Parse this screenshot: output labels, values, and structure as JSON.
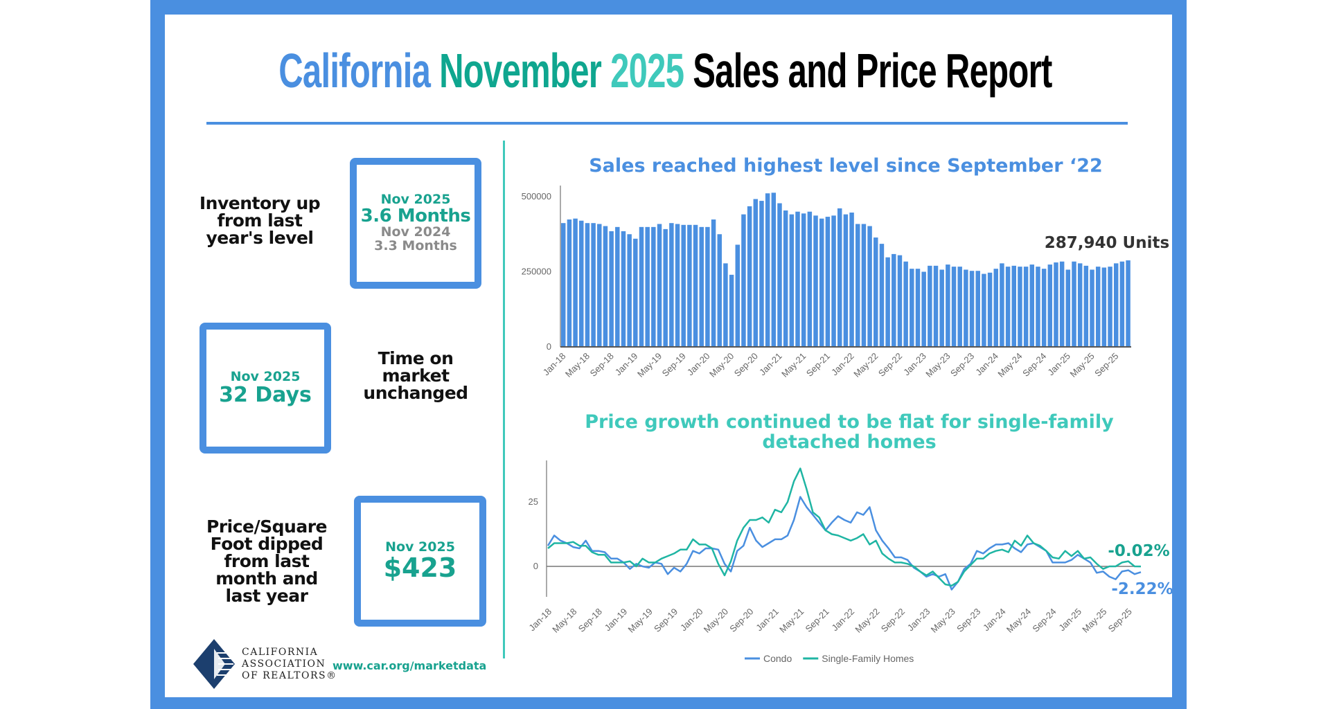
{
  "title": {
    "part1": "California",
    "part2": "November",
    "part3": "2025",
    "part4": "Sales and Price Report"
  },
  "colors": {
    "blue": "#4a8fe0",
    "teal": "#18a28f",
    "light_teal": "#3fc9bb",
    "condo": "#4a8fe0",
    "sfh": "#1fb5a3"
  },
  "inventory": {
    "description": "Inventory up from last year's level",
    "current_label": "Nov 2025",
    "current_value": "3.6 Months",
    "prior_label": "Nov 2024",
    "prior_value": "3.3 Months"
  },
  "time_on_market": {
    "description": "Time on market unchanged",
    "current_label": "Nov 2025",
    "current_value": "32 Days"
  },
  "price_sqft": {
    "description": "Price/Square Foot dipped from last month and last year",
    "current_label": "Nov 2025",
    "current_value": "$423"
  },
  "footer": {
    "logo_text": [
      "CALIFORNIA",
      "ASSOCIATION",
      "OF REALTORS®"
    ],
    "url": "www.car.org/marketdata"
  },
  "chart_data": [
    {
      "type": "bar",
      "title": "Sales reached highest level since September ‘22",
      "annotation": "287,940 Units",
      "x_start": "Jan-18",
      "x_end": "Nov-25",
      "tick_labels": [
        "Jan-18",
        "May-18",
        "Sep-18",
        "Jan-19",
        "May-19",
        "Sep-19",
        "Jan-20",
        "May-20",
        "Sep-20",
        "Jan-21",
        "May-21",
        "Sep-21",
        "Jan-22",
        "May-22",
        "Sep-22",
        "Jan-23",
        "May-23",
        "Sep-23",
        "Jan-24",
        "May-24",
        "Sep-24",
        "Jan-25",
        "May-25",
        "Sep-25"
      ],
      "y_ticks": [
        "0",
        "250000",
        "500000"
      ],
      "ylim": [
        0,
        520000
      ],
      "values": [
        412000,
        424000,
        427000,
        420000,
        412000,
        412000,
        409000,
        402000,
        385000,
        399000,
        385000,
        375000,
        360000,
        399000,
        399000,
        399000,
        409000,
        392000,
        412000,
        409000,
        406000,
        406000,
        406000,
        399000,
        399000,
        424000,
        375000,
        278000,
        240000,
        340000,
        441000,
        468000,
        492000,
        486000,
        511000,
        513000,
        478000,
        454000,
        441000,
        450000,
        444000,
        450000,
        437000,
        427000,
        433000,
        437000,
        461000,
        441000,
        447000,
        409000,
        409000,
        402000,
        364000,
        343000,
        298000,
        309000,
        305000,
        284000,
        260000,
        260000,
        250000,
        270000,
        270000,
        257000,
        274000,
        267000,
        267000,
        257000,
        253000,
        253000,
        243000,
        247000,
        260000,
        278000,
        267000,
        270000,
        267000,
        267000,
        274000,
        267000,
        260000,
        274000,
        281000,
        284000,
        257000,
        284000,
        278000,
        270000,
        257000,
        267000,
        264000,
        267000,
        278000,
        284000,
        287940
      ],
      "grid": false
    },
    {
      "type": "line",
      "title": "Price growth continued to be flat for single-family detached homes",
      "x_start": "Jan-18",
      "x_end": "Nov-25",
      "tick_labels": [
        "Jan-18",
        "May-18",
        "Sep-18",
        "Jan-19",
        "May-19",
        "Sep-19",
        "Jan-20",
        "May-20",
        "Sep-20",
        "Jan-21",
        "May-21",
        "Sep-21",
        "Jan-22",
        "May-22",
        "Sep-22",
        "Jan-23",
        "May-23",
        "Sep-23",
        "Jan-24",
        "May-24",
        "Sep-24",
        "Jan-25",
        "May-25",
        "Sep-25"
      ],
      "y_ticks": [
        "0",
        "25"
      ],
      "ylim": [
        -12,
        42
      ],
      "legend_position": "bottom",
      "grid": false,
      "series": [
        {
          "name": "Condo",
          "color": "#4a8fe0",
          "end_label": "-2.22%",
          "values": [
            8,
            12,
            10,
            9,
            7.5,
            7,
            10,
            6,
            6,
            5.5,
            3,
            3,
            1.5,
            -1,
            1,
            0,
            -0.5,
            1.5,
            1,
            -3,
            -0.5,
            -2,
            1,
            6,
            5,
            7,
            7,
            6.5,
            1,
            -2,
            6,
            8,
            15,
            10,
            7.5,
            9,
            10.5,
            10.5,
            12,
            18,
            27,
            23,
            20,
            17,
            14,
            17,
            19.5,
            18,
            17,
            21,
            20,
            23,
            14,
            10,
            7,
            3.5,
            3.5,
            2.5,
            -0.5,
            -2,
            -4,
            -3,
            -4,
            -3,
            -9,
            -6,
            -1,
            1,
            6,
            5,
            7,
            8.5,
            8.5,
            9,
            7,
            5.5,
            8.5,
            9,
            7.5,
            6,
            1.5,
            1.5,
            1.5,
            2.5,
            4.5,
            3,
            1.5,
            -2.5,
            -2,
            -4,
            -5,
            -2,
            -1.5,
            -3,
            -2.22
          ]
        },
        {
          "name": "Single-Family Homes",
          "color": "#1fb5a3",
          "end_label": "-0.02%",
          "values": [
            7,
            9,
            9,
            9,
            9.5,
            8,
            8,
            5.5,
            4.5,
            4.5,
            1.5,
            1.5,
            1.5,
            2,
            0,
            3,
            1.5,
            1.5,
            3,
            4,
            5,
            6.5,
            6.5,
            10.5,
            8.5,
            8.5,
            7,
            1,
            -3.5,
            2,
            10,
            15,
            18,
            18,
            19,
            17,
            22,
            21,
            25,
            33,
            38,
            30,
            21,
            19,
            14,
            12.5,
            12,
            11,
            10,
            11,
            12.5,
            8.5,
            10,
            5,
            3,
            1.5,
            1.5,
            1,
            0,
            -2,
            -3.5,
            -2,
            -4.5,
            -7,
            -7.5,
            -6,
            -2,
            0.5,
            3,
            3,
            5,
            6,
            6.5,
            5.5,
            10,
            8,
            12,
            9,
            8,
            6,
            3.5,
            3,
            6,
            4,
            6,
            3,
            3.5,
            1,
            -1,
            0,
            0,
            1.5,
            2,
            0,
            -0.02
          ]
        }
      ]
    }
  ]
}
